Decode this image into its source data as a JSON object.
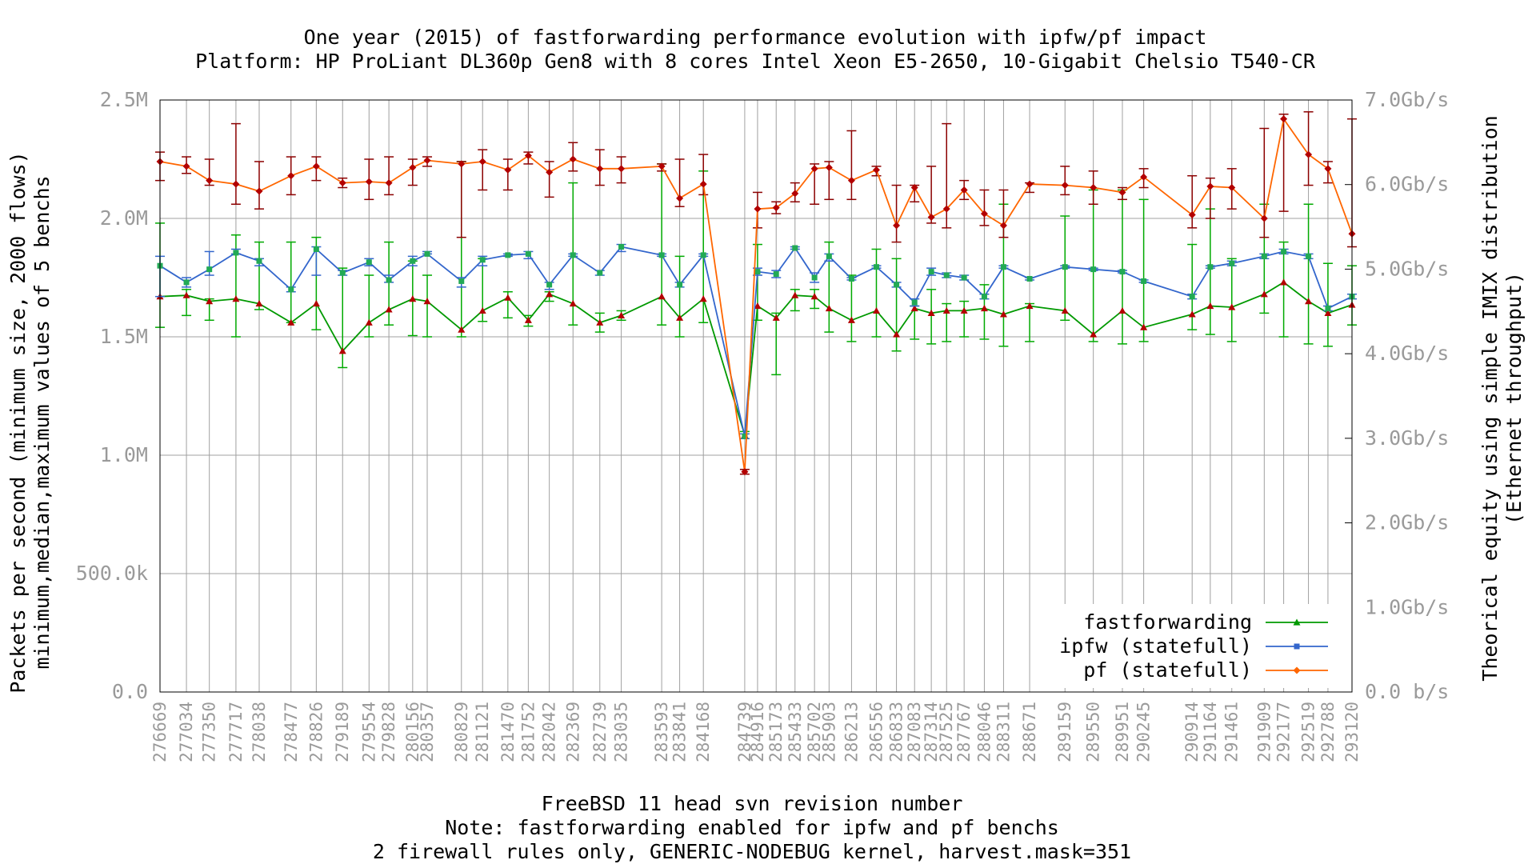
{
  "chart_data": {
    "type": "line",
    "title": "One year (2015) of fastforwarding performance evolution with ipfw/pf impact",
    "subtitle": "Platform: HP ProLiant DL360p Gen8 with 8 cores Intel Xeon E5-2650, 10-Gigabit Chelsio T540-CR",
    "xlabel": "FreeBSD 11 head svn revision number",
    "xlabel_notes": [
      "Note: fastforwarding enabled for ipfw and pf benchs",
      "2 firewall rules only, GENERIC-NODEBUG kernel, harvest.mask=351"
    ],
    "ylabel": "Packets per second (minimum size, 2000 flows)",
    "ylabel2": "minimum,median,maximum values of 5 benchs",
    "y2label": "Theorical equity using simple IMIX distribution",
    "y2label2": "(Ethernet throughput)",
    "xlim": [
      276669,
      293120
    ],
    "ylim": [
      0,
      2500000
    ],
    "y2lim": [
      0,
      7000000000
    ],
    "yticks": [
      0,
      500000,
      1000000,
      1500000,
      2000000,
      2500000
    ],
    "yticklabels": [
      "0.0",
      "500.0k",
      "1.0M",
      "1.5M",
      "2.0M",
      "2.5M"
    ],
    "y2ticks": [
      0,
      1000000000,
      2000000000,
      3000000000,
      4000000000,
      5000000000,
      6000000000,
      7000000000
    ],
    "y2ticklabels": [
      "0.0 b/s",
      "1.0Gb/s",
      "2.0Gb/s",
      "3.0Gb/s",
      "4.0Gb/s",
      "5.0Gb/s",
      "6.0Gb/s",
      "7.0Gb/s"
    ],
    "grid": true,
    "legend_position": "bottom-right",
    "x": [
      276669,
      277034,
      277350,
      277717,
      278038,
      278477,
      278826,
      279189,
      279554,
      279828,
      280156,
      280357,
      280829,
      281121,
      281470,
      281752,
      282042,
      282369,
      282739,
      283035,
      283593,
      283841,
      284168,
      284739,
      284916,
      285173,
      285433,
      285702,
      285903,
      286213,
      286556,
      286833,
      287083,
      287314,
      287525,
      287767,
      288046,
      288311,
      288671,
      289159,
      289550,
      289951,
      290245,
      290914,
      291164,
      291461,
      291909,
      292177,
      292519,
      292788,
      293120
    ],
    "series": [
      {
        "name": "fastforwarding",
        "color": "#009900",
        "marker": "triangle",
        "median": [
          1670000,
          1675000,
          1650000,
          1660000,
          1640000,
          1560000,
          1640000,
          1440000,
          1560000,
          1615000,
          1660000,
          1650000,
          1530000,
          1610000,
          1665000,
          1570000,
          1680000,
          1640000,
          1560000,
          1590000,
          1670000,
          1580000,
          1660000,
          1085000,
          1630000,
          1580000,
          1675000,
          1670000,
          1620000,
          1570000,
          1610000,
          1510000,
          1620000,
          1600000,
          1610000,
          1610000,
          1620000,
          1595000,
          1630000,
          1610000,
          1510000,
          1610000,
          1540000,
          1595000,
          1630000,
          1625000,
          1680000,
          1730000,
          1650000,
          1600000,
          1635000
        ],
        "min": [
          1540000,
          1590000,
          1570000,
          1500000,
          1615000,
          1560000,
          1530000,
          1370000,
          1500000,
          1550000,
          1505000,
          1500000,
          1500000,
          1565000,
          1580000,
          1545000,
          1650000,
          1550000,
          1520000,
          1570000,
          1550000,
          1500000,
          1560000,
          1070000,
          1570000,
          1340000,
          1610000,
          1620000,
          1520000,
          1480000,
          1500000,
          1440000,
          1490000,
          1470000,
          1480000,
          1500000,
          1490000,
          1460000,
          1480000,
          1570000,
          1480000,
          1470000,
          1480000,
          1530000,
          1510000,
          1480000,
          1600000,
          1500000,
          1470000,
          1460000,
          1550000
        ],
        "max": [
          1980000,
          1700000,
          1660000,
          1930000,
          1900000,
          1900000,
          1920000,
          1790000,
          1760000,
          1900000,
          1820000,
          1760000,
          2240000,
          1830000,
          1690000,
          1590000,
          1690000,
          2150000,
          1600000,
          1610000,
          2230000,
          1840000,
          2200000,
          1100000,
          1890000,
          1600000,
          1700000,
          1700000,
          1900000,
          1760000,
          1870000,
          1830000,
          1630000,
          1700000,
          1640000,
          1650000,
          1720000,
          2060000,
          1640000,
          2010000,
          2120000,
          2120000,
          2080000,
          1890000,
          2040000,
          1830000,
          2060000,
          1900000,
          2060000,
          1810000,
          1800000
        ]
      },
      {
        "name": "ipfw (statefull)",
        "color": "#3366cc",
        "marker": "square",
        "median": [
          1800000,
          1730000,
          1785000,
          1855000,
          1820000,
          1700000,
          1870000,
          1770000,
          1815000,
          1740000,
          1820000,
          1850000,
          1735000,
          1825000,
          1845000,
          1850000,
          1720000,
          1845000,
          1770000,
          1880000,
          1845000,
          1720000,
          1845000,
          1080000,
          1775000,
          1765000,
          1875000,
          1750000,
          1840000,
          1745000,
          1795000,
          1720000,
          1645000,
          1775000,
          1760000,
          1750000,
          1670000,
          1795000,
          1745000,
          1795000,
          1785000,
          1775000,
          1735000,
          1670000,
          1795000,
          1810000,
          1840000,
          1860000,
          1840000,
          1620000,
          1670000
        ],
        "min": [
          1670000,
          1710000,
          1760000,
          1850000,
          1800000,
          1690000,
          1760000,
          1760000,
          1800000,
          1730000,
          1800000,
          1850000,
          1710000,
          1800000,
          1840000,
          1830000,
          1700000,
          1840000,
          1760000,
          1860000,
          1840000,
          1710000,
          1840000,
          1070000,
          1760000,
          1750000,
          1870000,
          1730000,
          1820000,
          1740000,
          1790000,
          1710000,
          1630000,
          1760000,
          1750000,
          1740000,
          1660000,
          1790000,
          1740000,
          1790000,
          1780000,
          1770000,
          1730000,
          1660000,
          1790000,
          1800000,
          1830000,
          1850000,
          1830000,
          1610000,
          1660000
        ],
        "max": [
          1840000,
          1750000,
          1860000,
          1870000,
          1830000,
          1710000,
          1880000,
          1780000,
          1830000,
          1760000,
          1840000,
          1860000,
          1750000,
          1840000,
          1850000,
          1860000,
          1730000,
          1850000,
          1780000,
          1890000,
          1850000,
          1730000,
          1850000,
          1090000,
          1790000,
          1780000,
          1880000,
          1770000,
          1850000,
          1750000,
          1800000,
          1730000,
          1660000,
          1790000,
          1770000,
          1760000,
          1680000,
          1800000,
          1750000,
          1800000,
          1790000,
          1780000,
          1740000,
          1680000,
          1800000,
          1820000,
          1850000,
          1870000,
          1850000,
          1630000,
          1680000
        ]
      },
      {
        "name": "pf (statefull)",
        "color": "#ff6600",
        "marker": "diamond",
        "median": [
          2240000,
          2220000,
          2160000,
          2145000,
          2115000,
          2180000,
          2220000,
          2150000,
          2155000,
          2150000,
          2215000,
          2245000,
          2230000,
          2240000,
          2205000,
          2265000,
          2195000,
          2250000,
          2210000,
          2210000,
          2220000,
          2085000,
          2145000,
          930000,
          2040000,
          2045000,
          2105000,
          2210000,
          2215000,
          2160000,
          2205000,
          1970000,
          2130000,
          2005000,
          2040000,
          2120000,
          2020000,
          1970000,
          2145000,
          2140000,
          2130000,
          2110000,
          2175000,
          2015000,
          2135000,
          2130000,
          2000000,
          2420000,
          2270000,
          2210000,
          1935000
        ],
        "min": [
          2160000,
          2190000,
          2140000,
          2060000,
          2040000,
          2100000,
          2160000,
          2130000,
          2080000,
          2100000,
          2140000,
          2220000,
          1920000,
          2120000,
          2120000,
          2230000,
          2090000,
          2200000,
          2140000,
          2150000,
          2200000,
          2050000,
          2100000,
          920000,
          1960000,
          2020000,
          2070000,
          2060000,
          2080000,
          2080000,
          2180000,
          1900000,
          2070000,
          1980000,
          1960000,
          2080000,
          1970000,
          1920000,
          2110000,
          2100000,
          2060000,
          2080000,
          2130000,
          1960000,
          2000000,
          2040000,
          1920000,
          2030000,
          2140000,
          2150000,
          1880000
        ],
        "max": [
          2280000,
          2260000,
          2250000,
          2400000,
          2240000,
          2260000,
          2260000,
          2170000,
          2250000,
          2260000,
          2250000,
          2260000,
          2240000,
          2290000,
          2250000,
          2280000,
          2240000,
          2320000,
          2290000,
          2260000,
          2230000,
          2250000,
          2270000,
          940000,
          2110000,
          2070000,
          2150000,
          2230000,
          2240000,
          2370000,
          2220000,
          2140000,
          2140000,
          2220000,
          2400000,
          2160000,
          2120000,
          2120000,
          2150000,
          2220000,
          2200000,
          2130000,
          2210000,
          2180000,
          2170000,
          2210000,
          2380000,
          2440000,
          2450000,
          2240000,
          2420000
        ]
      }
    ]
  }
}
